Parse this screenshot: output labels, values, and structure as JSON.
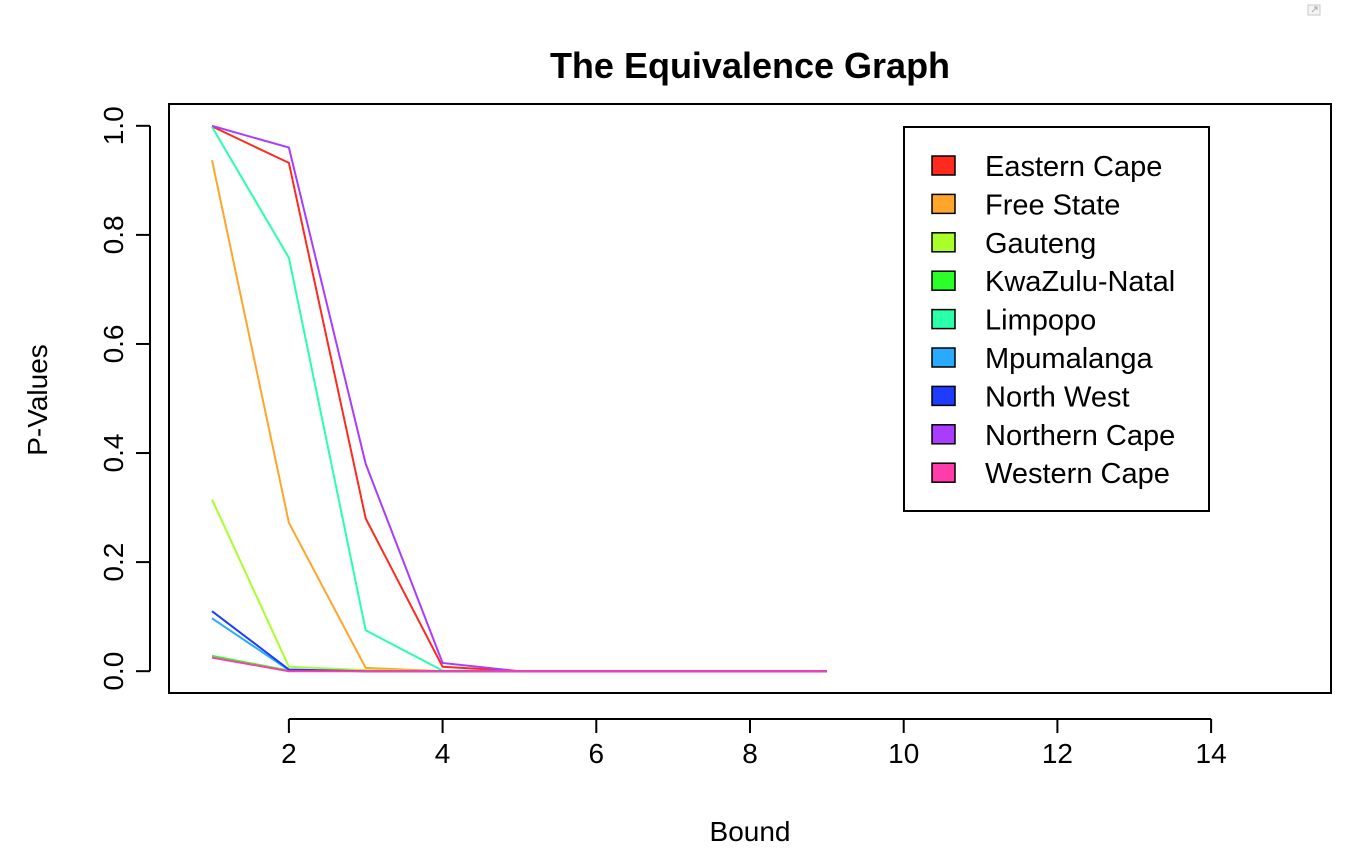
{
  "chart_data": {
    "type": "line",
    "title": "The Equivalence Graph",
    "xlabel": "Bound",
    "ylabel": "P-Values",
    "xlim": [
      0.44,
      15.56
    ],
    "ylim": [
      -0.04,
      1.04
    ],
    "xticks": [
      2,
      4,
      6,
      8,
      10,
      12,
      14
    ],
    "yticks": [
      0.0,
      0.2,
      0.4,
      0.6,
      0.8,
      1.0
    ],
    "xtick_labels": [
      "2",
      "4",
      "6",
      "8",
      "10",
      "12",
      "14"
    ],
    "ytick_labels": [
      "0.0",
      "0.2",
      "0.4",
      "0.6",
      "0.8",
      "1.0"
    ],
    "grid": false,
    "legend_position": "top-right",
    "x": [
      1,
      2,
      3,
      4,
      5,
      6,
      7,
      8,
      9
    ],
    "series": [
      {
        "name": "Eastern Cape",
        "color": "#ff2a1e",
        "values": [
          0.999,
          0.932,
          0.28,
          0.008,
          0.0,
          0.0,
          0.0,
          0.0,
          0.0
        ]
      },
      {
        "name": "Free State",
        "color": "#ffa52a",
        "values": [
          0.937,
          0.272,
          0.006,
          0.0,
          0.0,
          0.0,
          0.0,
          0.0,
          0.0
        ]
      },
      {
        "name": "Gauteng",
        "color": "#aaff2a",
        "values": [
          0.315,
          0.008,
          0.002,
          0.0,
          0.0,
          0.0,
          0.0,
          0.0,
          0.0
        ]
      },
      {
        "name": "KwaZulu-Natal",
        "color": "#2aff2a",
        "values": [
          0.028,
          0.001,
          0.0,
          0.0,
          0.0,
          0.0,
          0.0,
          0.0,
          0.0
        ]
      },
      {
        "name": "Limpopo",
        "color": "#2affaa",
        "values": [
          0.998,
          0.758,
          0.075,
          0.001,
          0.0,
          0.0,
          0.0,
          0.0,
          0.0
        ]
      },
      {
        "name": "Mpumalanga",
        "color": "#2aaaff",
        "values": [
          0.097,
          0.002,
          0.0,
          0.0,
          0.0,
          0.0,
          0.0,
          0.0,
          0.0
        ]
      },
      {
        "name": "North West",
        "color": "#1e3cff",
        "values": [
          0.11,
          0.003,
          0.0,
          0.0,
          0.0,
          0.0,
          0.0,
          0.0,
          0.0
        ]
      },
      {
        "name": "Northern Cape",
        "color": "#aa3cff",
        "values": [
          1.0,
          0.96,
          0.38,
          0.015,
          0.0,
          0.0,
          0.0,
          0.0,
          0.0
        ]
      },
      {
        "name": "Western Cape",
        "color": "#ff3caa",
        "values": [
          0.025,
          0.0,
          0.0,
          0.0,
          0.0,
          0.0,
          0.0,
          0.0,
          0.0
        ]
      }
    ]
  }
}
